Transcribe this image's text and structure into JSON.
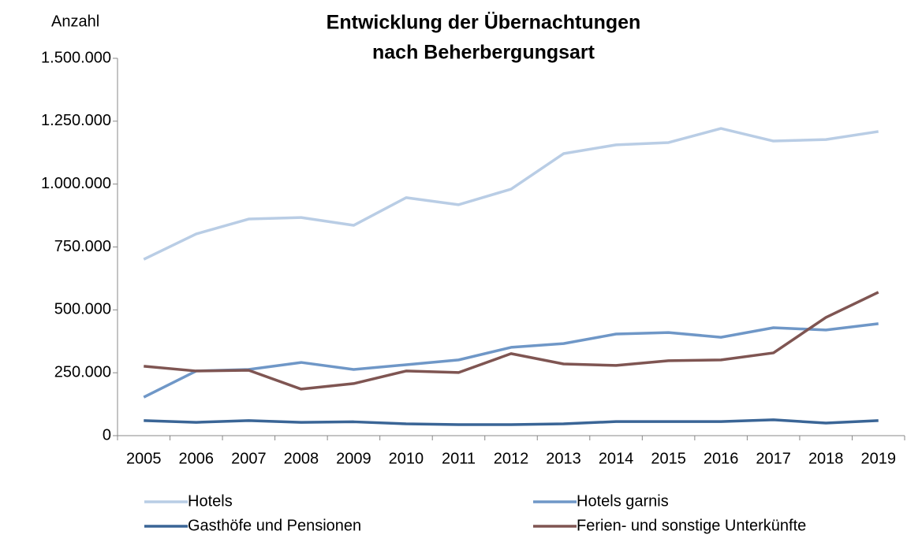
{
  "chart_data": {
    "type": "line",
    "title": "Entwicklung der Übernachtungen",
    "subtitle": "nach Beherbergungsart",
    "y_label": "Anzahl",
    "categories": [
      "2005",
      "2006",
      "2007",
      "2008",
      "2009",
      "2010",
      "2011",
      "2012",
      "2013",
      "2014",
      "2015",
      "2016",
      "2017",
      "2018",
      "2019"
    ],
    "series": [
      {
        "name": "Hotels",
        "color": "#b9cde5",
        "values": [
          701000,
          802000,
          861000,
          867000,
          836000,
          946000,
          918000,
          980000,
          1121000,
          1156000,
          1165000,
          1221000,
          1171000,
          1177000,
          1209000
        ]
      },
      {
        "name": "Hotels garnis",
        "color": "#6f97c7",
        "values": [
          153000,
          257000,
          263000,
          291000,
          263000,
          282000,
          301000,
          351000,
          366000,
          404000,
          410000,
          391000,
          429000,
          420000,
          445000
        ]
      },
      {
        "name": "Gasthöfe und Pensionen",
        "color": "#3a6596",
        "values": [
          60000,
          53000,
          60000,
          53000,
          55000,
          47000,
          44000,
          44000,
          47000,
          56000,
          56000,
          56000,
          63000,
          50000,
          60000
        ]
      },
      {
        "name": "Ferien- und sonstige Unterkünfte",
        "color": "#7f5552",
        "values": [
          276000,
          257000,
          260000,
          185000,
          207000,
          257000,
          251000,
          326000,
          285000,
          279000,
          298000,
          301000,
          329000,
          470000,
          570000
        ]
      }
    ],
    "ylim": [
      0,
      1500000
    ],
    "yticks": [
      0,
      {
        "value": 250000,
        "label": "250.000"
      },
      {
        "value": 500000,
        "label": "500.000"
      },
      {
        "value": 750000,
        "label": "750.000"
      },
      {
        "value": 1000000,
        "label": "1.000.000"
      },
      {
        "value": 1250000,
        "label": "1.250.000"
      },
      {
        "value": 1500000,
        "label": "1.500.000"
      }
    ],
    "legend": "bottom"
  }
}
